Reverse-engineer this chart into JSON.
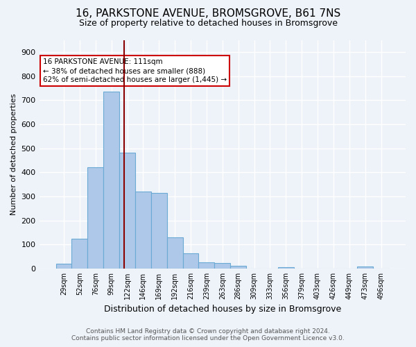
{
  "title": "16, PARKSTONE AVENUE, BROMSGROVE, B61 7NS",
  "subtitle": "Size of property relative to detached houses in Bromsgrove",
  "xlabel": "Distribution of detached houses by size in Bromsgrove",
  "ylabel": "Number of detached properties",
  "footer_line1": "Contains HM Land Registry data © Crown copyright and database right 2024.",
  "footer_line2": "Contains public sector information licensed under the Open Government Licence v3.0.",
  "bar_labels": [
    "29sqm",
    "52sqm",
    "76sqm",
    "99sqm",
    "122sqm",
    "146sqm",
    "169sqm",
    "192sqm",
    "216sqm",
    "239sqm",
    "263sqm",
    "286sqm",
    "309sqm",
    "333sqm",
    "356sqm",
    "379sqm",
    "403sqm",
    "426sqm",
    "449sqm",
    "473sqm",
    "496sqm"
  ],
  "bar_values": [
    20,
    125,
    420,
    735,
    480,
    320,
    315,
    130,
    63,
    27,
    22,
    10,
    0,
    0,
    7,
    0,
    0,
    0,
    0,
    9,
    0
  ],
  "bar_color": "#adc8e8",
  "bar_edgecolor": "#6aaad4",
  "bg_color": "#eef3fa",
  "grid_color": "#ffffff",
  "vline_x": 3.82,
  "vline_color": "#8b0000",
  "annotation_text": "16 PARKSTONE AVENUE: 111sqm\n← 38% of detached houses are smaller (888)\n62% of semi-detached houses are larger (1,445) →",
  "annotation_box_color": "#ffffff",
  "annotation_box_edgecolor": "#cc0000",
  "ylim": [
    0,
    950
  ],
  "yticks": [
    0,
    100,
    200,
    300,
    400,
    500,
    600,
    700,
    800,
    900
  ]
}
